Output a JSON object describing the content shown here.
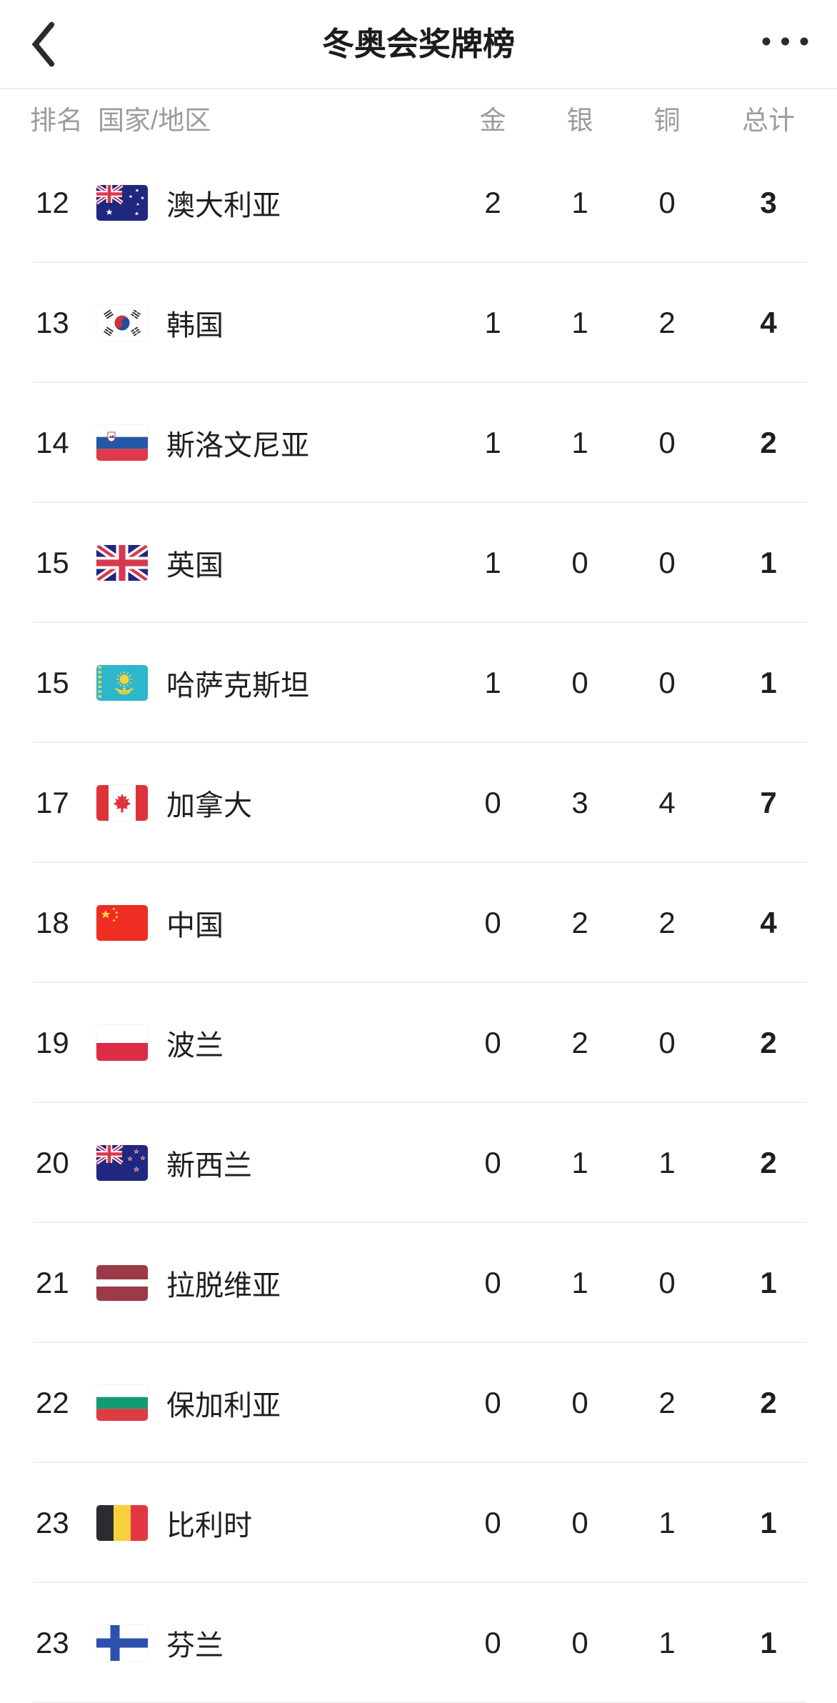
{
  "nav": {
    "title": "冬奥会奖牌榜",
    "back_icon": "chevron-left",
    "more_icon": "ellipsis"
  },
  "table": {
    "headers": {
      "rank": "排名",
      "country": "国家/地区",
      "gold": "金",
      "silver": "银",
      "bronze": "铜",
      "total": "总计"
    },
    "rows": [
      {
        "rank": 12,
        "country": "澳大利亚",
        "flag": "au",
        "flag_name": "australia",
        "gold": 2,
        "silver": 1,
        "bronze": 0,
        "total": 3
      },
      {
        "rank": 13,
        "country": "韩国",
        "flag": "kr",
        "flag_name": "south-korea",
        "gold": 1,
        "silver": 1,
        "bronze": 2,
        "total": 4
      },
      {
        "rank": 14,
        "country": "斯洛文尼亚",
        "flag": "si",
        "flag_name": "slovenia",
        "gold": 1,
        "silver": 1,
        "bronze": 0,
        "total": 2
      },
      {
        "rank": 15,
        "country": "英国",
        "flag": "gb",
        "flag_name": "united-kingdom",
        "gold": 1,
        "silver": 0,
        "bronze": 0,
        "total": 1
      },
      {
        "rank": 15,
        "country": "哈萨克斯坦",
        "flag": "kz",
        "flag_name": "kazakhstan",
        "gold": 1,
        "silver": 0,
        "bronze": 0,
        "total": 1
      },
      {
        "rank": 17,
        "country": "加拿大",
        "flag": "ca",
        "flag_name": "canada",
        "gold": 0,
        "silver": 3,
        "bronze": 4,
        "total": 7
      },
      {
        "rank": 18,
        "country": "中国",
        "flag": "cn",
        "flag_name": "china",
        "gold": 0,
        "silver": 2,
        "bronze": 2,
        "total": 4
      },
      {
        "rank": 19,
        "country": "波兰",
        "flag": "pl",
        "flag_name": "poland",
        "gold": 0,
        "silver": 2,
        "bronze": 0,
        "total": 2
      },
      {
        "rank": 20,
        "country": "新西兰",
        "flag": "nz",
        "flag_name": "new-zealand",
        "gold": 0,
        "silver": 1,
        "bronze": 1,
        "total": 2
      },
      {
        "rank": 21,
        "country": "拉脱维亚",
        "flag": "lv",
        "flag_name": "latvia",
        "gold": 0,
        "silver": 1,
        "bronze": 0,
        "total": 1
      },
      {
        "rank": 22,
        "country": "保加利亚",
        "flag": "bg",
        "flag_name": "bulgaria",
        "gold": 0,
        "silver": 0,
        "bronze": 2,
        "total": 2
      },
      {
        "rank": 23,
        "country": "比利时",
        "flag": "be",
        "flag_name": "belgium",
        "gold": 0,
        "silver": 0,
        "bronze": 1,
        "total": 1
      },
      {
        "rank": 23,
        "country": "芬兰",
        "flag": "fi",
        "flag_name": "finland",
        "gold": 0,
        "silver": 0,
        "bronze": 1,
        "total": 1
      }
    ]
  },
  "colors": {
    "text": "#1f1f1f",
    "header_text": "#9b9b9b",
    "divider": "#f0f0f0",
    "nav_icon": "#2b2b2b"
  }
}
